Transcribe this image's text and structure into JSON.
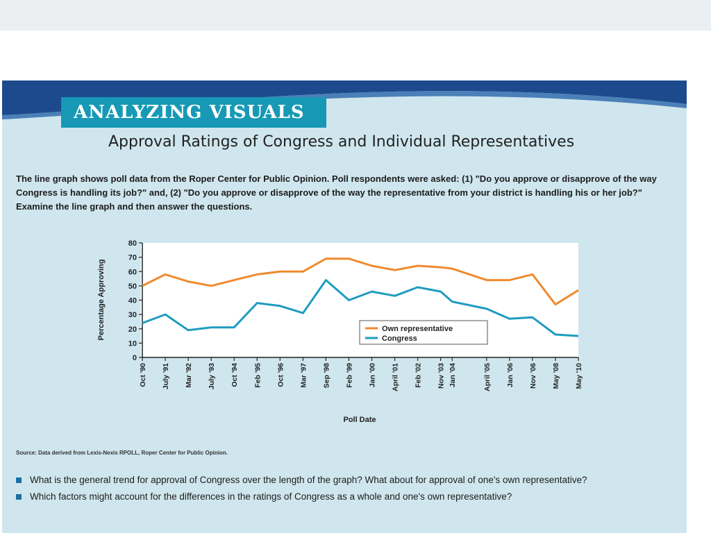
{
  "header": {
    "section_label": "ANALYZING VISUALS",
    "title": "Approval Ratings of Congress and Individual Representatives",
    "intro": "The line graph shows poll data from the Roper Center for Public Opinion. Poll respondents were asked: (1) \"Do you approve or disapprove of the way Congress is handling its job?\" and, (2) \"Do you approve or disapprove of the way the representative from your district is handling his or her job?\" Examine the line graph and then answer the questions."
  },
  "source": "Source: Data derived from Lexis-Nexis RPOLL, Roper Center for Public Opinion.",
  "questions": [
    "What is the general trend for approval of Congress over the length of the graph? What about for approval of one's own representative?",
    "Which factors might account for the differences in the ratings of Congress as a whole and one's own representative?"
  ],
  "colors": {
    "own_representative": "#ef8a2e",
    "congress": "#1e9cc0",
    "banner_dark": "#1d4a8c",
    "label_bg": "#1799b5"
  },
  "chart_data": {
    "type": "line",
    "title": "",
    "xlabel": "Poll Date",
    "ylabel": "Percentage Approving",
    "ylim": [
      0,
      80
    ],
    "yticks": [
      0,
      10,
      20,
      30,
      40,
      50,
      60,
      70,
      80
    ],
    "categories": [
      "Oct '90",
      "July '91",
      "Mar '92",
      "July '93",
      "Oct '94",
      "Feb '95",
      "Oct '96",
      "Mar '97",
      "Sep '98",
      "Feb '99",
      "Jan '00",
      "April '01",
      "Feb '02",
      "Nov '03",
      "Jan '04",
      "April '05",
      "Jan '06",
      "Nov '06",
      "May '08",
      "May '10"
    ],
    "x_positions": [
      0,
      1,
      2,
      3,
      4,
      5,
      6,
      7,
      8,
      9,
      10,
      11,
      12,
      13,
      13.5,
      15,
      16,
      17,
      18,
      19
    ],
    "legend_position": "bottom-right",
    "grid": false,
    "series": [
      {
        "name": "Own representative",
        "color": "#ef8a2e",
        "values": [
          50,
          58,
          53,
          50,
          54,
          58,
          60,
          60,
          69,
          69,
          64,
          61,
          64,
          63,
          62,
          54,
          54,
          58,
          37,
          47
        ]
      },
      {
        "name": "Congress",
        "color": "#1e9cc0",
        "values": [
          24,
          30,
          19,
          21,
          21,
          38,
          36,
          31,
          54,
          40,
          46,
          43,
          49,
          46,
          39,
          34,
          27,
          28,
          16,
          15
        ]
      }
    ]
  }
}
